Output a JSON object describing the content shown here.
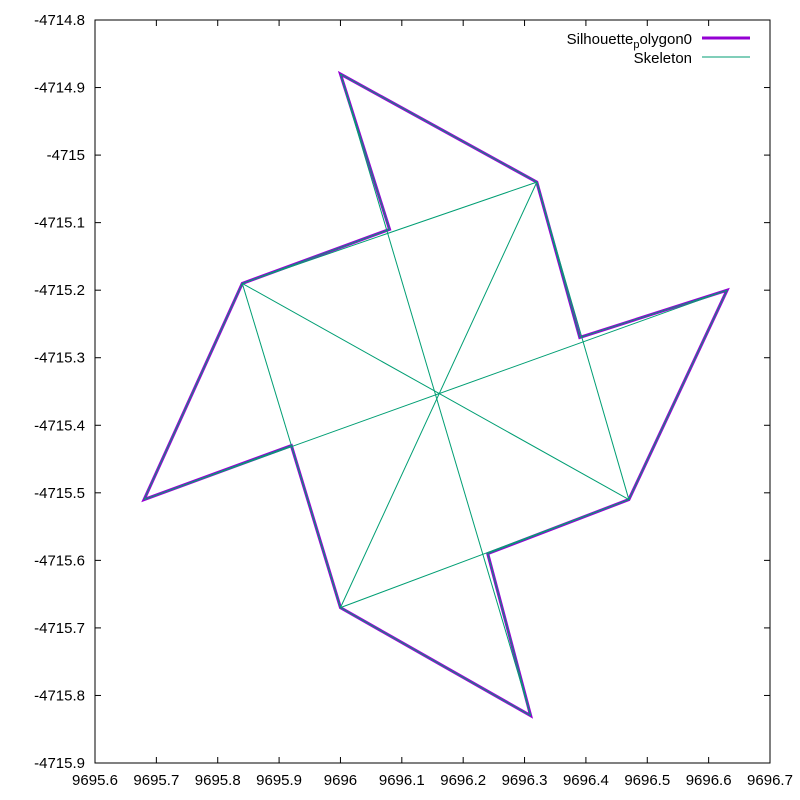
{
  "chart_data": {
    "type": "line",
    "title": "",
    "xlabel": "",
    "ylabel": "",
    "xlim": [
      9695.6,
      9696.7
    ],
    "ylim": [
      -4715.9,
      -4714.8
    ],
    "x_ticks": [
      "9695.6",
      "9695.7",
      "9695.8",
      "9695.9",
      "9696",
      "9696.1",
      "9696.2",
      "9696.3",
      "9696.4",
      "9696.5",
      "9696.6",
      "9696.7"
    ],
    "y_ticks": [
      "-4714.8",
      "-4714.9",
      "-4715",
      "-4715.1",
      "-4715.2",
      "-4715.3",
      "-4715.4",
      "-4715.5",
      "-4715.6",
      "-4715.7",
      "-4715.8",
      "-4715.9"
    ],
    "grid": false,
    "legend_position": "top-right",
    "legend": [
      {
        "label": "Silhouetteₚₒₗᵧgon0",
        "display_main": "Silhouette",
        "display_sub": "p",
        "display_rest": "olygon0",
        "color": "#9400d3"
      },
      {
        "label": "Skeleton",
        "color": "#009e73"
      }
    ],
    "series": [
      {
        "name": "Silhouette_polygon0",
        "color": "#9400d3",
        "closed": true,
        "points": [
          [
            9696.0,
            -4714.88
          ],
          [
            9696.08,
            -4715.11
          ],
          [
            9695.84,
            -4715.19
          ],
          [
            9695.68,
            -4715.51
          ],
          [
            9695.92,
            -4715.43
          ],
          [
            9696.0,
            -4715.67
          ],
          [
            9696.31,
            -4715.83
          ],
          [
            9696.24,
            -4715.59
          ],
          [
            9696.47,
            -4715.51
          ],
          [
            9696.63,
            -4715.2
          ],
          [
            9696.39,
            -4715.27
          ],
          [
            9696.32,
            -4715.04
          ]
        ]
      },
      {
        "name": "Skeleton",
        "color": "#009e73",
        "segments": [
          [
            [
              9696.0,
              -4714.88
            ],
            [
              9696.08,
              -4715.11
            ]
          ],
          [
            [
              9696.08,
              -4715.11
            ],
            [
              9695.84,
              -4715.19
            ]
          ],
          [
            [
              9695.84,
              -4715.19
            ],
            [
              9695.68,
              -4715.51
            ]
          ],
          [
            [
              9695.68,
              -4715.51
            ],
            [
              9695.92,
              -4715.43
            ]
          ],
          [
            [
              9695.92,
              -4715.43
            ],
            [
              9696.0,
              -4715.67
            ]
          ],
          [
            [
              9696.0,
              -4715.67
            ],
            [
              9696.31,
              -4715.83
            ]
          ],
          [
            [
              9696.31,
              -4715.83
            ],
            [
              9696.24,
              -4715.59
            ]
          ],
          [
            [
              9696.24,
              -4715.59
            ],
            [
              9696.47,
              -4715.51
            ]
          ],
          [
            [
              9696.47,
              -4715.51
            ],
            [
              9696.63,
              -4715.2
            ]
          ],
          [
            [
              9696.63,
              -4715.2
            ],
            [
              9696.39,
              -4715.27
            ]
          ],
          [
            [
              9696.39,
              -4715.27
            ],
            [
              9696.32,
              -4715.04
            ]
          ],
          [
            [
              9696.32,
              -4715.04
            ],
            [
              9696.0,
              -4714.88
            ]
          ],
          [
            [
              9695.84,
              -4715.19
            ],
            [
              9696.32,
              -4715.04
            ]
          ],
          [
            [
              9696.32,
              -4715.04
            ],
            [
              9696.47,
              -4715.51
            ]
          ],
          [
            [
              9696.47,
              -4715.51
            ],
            [
              9696.0,
              -4715.67
            ]
          ],
          [
            [
              9696.0,
              -4715.67
            ],
            [
              9695.84,
              -4715.19
            ]
          ],
          [
            [
              9695.84,
              -4715.19
            ],
            [
              9696.47,
              -4715.51
            ]
          ],
          [
            [
              9696.32,
              -4715.04
            ],
            [
              9696.0,
              -4715.67
            ]
          ],
          [
            [
              9696.0,
              -4714.88
            ],
            [
              9696.31,
              -4715.83
            ]
          ],
          [
            [
              9695.68,
              -4715.51
            ],
            [
              9696.63,
              -4715.2
            ]
          ]
        ]
      }
    ]
  }
}
